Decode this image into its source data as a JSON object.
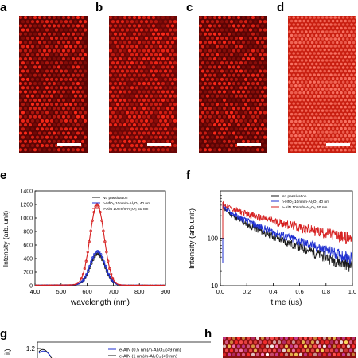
{
  "panels": {
    "a": "a",
    "b": "b",
    "c": "c",
    "d": "d",
    "e": "e",
    "f": "f",
    "g": "g",
    "h": "h"
  },
  "colors": {
    "black": "#1a1a1a",
    "red": "#d62020",
    "blue": "#1f2fd0",
    "micro_bg": "#5a0404",
    "micro_dot": "#ff2a1a",
    "micro_d_bg": "#c81e10",
    "micro_d_dot": "#ff6a5a"
  },
  "chart_data": [
    {
      "panel": "e",
      "type": "line",
      "xlabel": "wavelength (nm)",
      "ylabel": "Intensity (arb. unit)",
      "xlim": [
        400,
        900
      ],
      "ylim": [
        0,
        1400
      ],
      "xticks": [
        "400",
        "500",
        "600",
        "700",
        "800",
        "900"
      ],
      "yticks": [
        "0",
        "200",
        "400",
        "600",
        "800",
        "1000",
        "1200",
        "1400"
      ],
      "legend_position": "top-right",
      "series": [
        {
          "name": "No passivation",
          "color": "#1a1a1a",
          "peak_x": 640,
          "peak_y": 460,
          "width": 28
        },
        {
          "name": "n-HfO₂ 10nm/n-Al₂O₃ 40 nm",
          "color": "#1f2fd0",
          "peak_x": 640,
          "peak_y": 500,
          "width": 28
        },
        {
          "name": "e-AlN 10nm/n-Al₂O₃ 40 nm",
          "color": "#d62020",
          "peak_x": 638,
          "peak_y": 1190,
          "width": 27
        }
      ]
    },
    {
      "panel": "f",
      "type": "line",
      "xlabel": "time (us)",
      "ylabel": "Intensity (arb.unit)",
      "xlim": [
        0,
        1.0
      ],
      "yscale": "log",
      "ylim": [
        10,
        1000
      ],
      "xticks": [
        "0.0",
        "0.2",
        "0.4",
        "0.6",
        "0.8",
        "1.0"
      ],
      "yticks": [
        "10",
        "100"
      ],
      "legend_position": "top-right",
      "series": [
        {
          "name": "No passivation",
          "color": "#1a1a1a",
          "y0": 520,
          "y_end": 26
        },
        {
          "name": "n-HfO₂ 10nm/n-Al₂O₃ 40 nm",
          "color": "#1f2fd0",
          "y0": 540,
          "y_end": 38
        },
        {
          "name": "e-AlN 10nm/n-Al₂O₃ 40 nm",
          "color": "#d62020",
          "y0": 580,
          "y_end": 100
        }
      ]
    },
    {
      "panel": "g",
      "type": "line",
      "ylabel": "it)",
      "yticks": [
        "1.2"
      ],
      "legend_position": "top-right",
      "series": [
        {
          "name": "e-AlN (0.5 nm)/n-Al₂O₃ (49 nm)",
          "color": "#1f2fd0"
        },
        {
          "name": "e-AlN (1 nm)/n-Al₂O₃ (49 nm)",
          "color": "#1a1a1a"
        }
      ]
    }
  ]
}
